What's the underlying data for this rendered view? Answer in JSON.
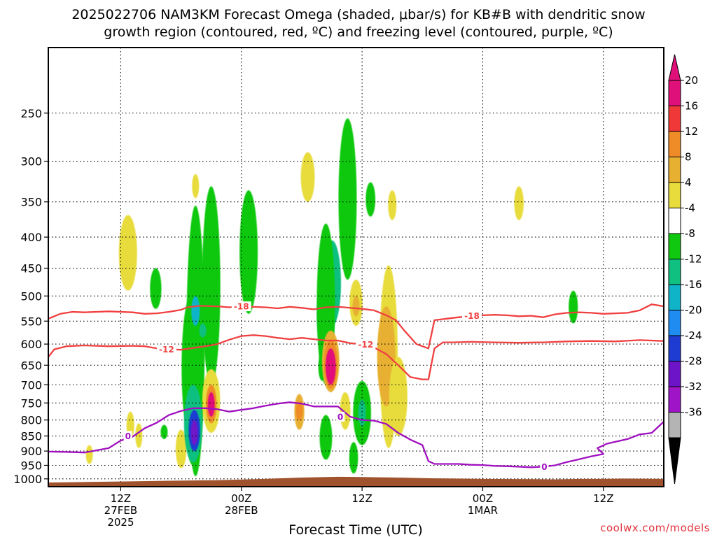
{
  "chart_data": {
    "type": "heatmap",
    "title_lines": [
      "2025022706 NAM3KM Forecast Omega (shaded, μbar/s) for KB#B with dendritic snow",
      "growth region (contoured, red, ºC) and freezing level (contoured, purple, ºC)"
    ],
    "xlabel": "Forecast Time (UTC)",
    "xlim_hours": [
      -6,
      45
    ],
    "x_ticks": [
      {
        "hour": 0,
        "lines": [
          "12Z",
          "27FEB",
          "2025"
        ]
      },
      {
        "hour": 10,
        "lines": [
          "00Z",
          "28FEB"
        ]
      },
      {
        "hour": 20,
        "lines": [
          "12Z"
        ]
      },
      {
        "hour": 30,
        "lines": [
          "00Z",
          "1MAR"
        ]
      },
      {
        "hour": 40,
        "lines": [
          "12Z"
        ]
      }
    ],
    "y_axis": {
      "scale": "log",
      "inverted": true,
      "ylim_hpa": [
        1030,
        195
      ],
      "grid": "dotted"
    },
    "y_ticks": [
      250,
      300,
      350,
      400,
      450,
      500,
      550,
      600,
      650,
      700,
      750,
      800,
      850,
      900,
      950,
      1000
    ],
    "colorbar": {
      "unit": "μbar/s",
      "labels": [
        20,
        16,
        12,
        8,
        4,
        -4,
        -8,
        -12,
        -16,
        -20,
        -24,
        -28,
        -32,
        -36
      ],
      "bins": [
        {
          "min": 20,
          "max": 24,
          "color": "#e0107a"
        },
        {
          "min": 16,
          "max": 20,
          "color": "#f03838"
        },
        {
          "min": 12,
          "max": 16,
          "color": "#f08c28"
        },
        {
          "min": 8,
          "max": 12,
          "color": "#e8b030"
        },
        {
          "min": 4,
          "max": 8,
          "color": "#e8dc3c"
        },
        {
          "min": -4,
          "max": 4,
          "color": "#ffffff"
        },
        {
          "min": -8,
          "max": -4,
          "color": "#10c810"
        },
        {
          "min": -12,
          "max": -8,
          "color": "#10c080"
        },
        {
          "min": -16,
          "max": -12,
          "color": "#10b4c8"
        },
        {
          "min": -20,
          "max": -16,
          "color": "#1e8cf0"
        },
        {
          "min": -24,
          "max": -20,
          "color": "#1e3cd2"
        },
        {
          "min": -28,
          "max": -24,
          "color": "#6e14c8"
        },
        {
          "min": -32,
          "max": -28,
          "color": "#a014c8"
        },
        {
          "min": -36,
          "max": -32,
          "color": "#b4b4b4"
        }
      ],
      "top_color": "#e0107a",
      "bottom_color": "#000000"
    },
    "omega_cells": [
      {
        "x": 0.6,
        "p1": 368,
        "p2": 490,
        "v": 6
      },
      {
        "x": 0.8,
        "p1": 775,
        "p2": 860,
        "v": 5
      },
      {
        "x": 1.5,
        "p1": 810,
        "p2": 890,
        "v": 5
      },
      {
        "x": -2.6,
        "p1": 880,
        "p2": 945,
        "v": 5
      },
      {
        "x": 2.9,
        "p1": 450,
        "p2": 525,
        "v": -6
      },
      {
        "x": 3.6,
        "p1": 815,
        "p2": 860,
        "v": -6
      },
      {
        "x": 5.0,
        "p1": 830,
        "p2": 960,
        "v": 5
      },
      {
        "x": 6.2,
        "p1": 315,
        "p2": 345,
        "v": 5
      },
      {
        "x": 5.8,
        "p1": 500,
        "p2": 860,
        "v": -6
      },
      {
        "x": 6.0,
        "p1": 820,
        "p2": 950,
        "v": -7
      },
      {
        "x": 6.2,
        "p1": 355,
        "p2": 990,
        "v": -6
      },
      {
        "x": 7.5,
        "p1": 330,
        "p2": 700,
        "v": -5
      },
      {
        "x": 6.0,
        "p1": 700,
        "p2": 940,
        "v": -10
      },
      {
        "x": 6.2,
        "p1": 500,
        "p2": 560,
        "v": -14
      },
      {
        "x": 6.8,
        "p1": 555,
        "p2": 585,
        "v": -12
      },
      {
        "x": 6.1,
        "p1": 770,
        "p2": 900,
        "v": -22
      },
      {
        "x": 6.1,
        "p1": 800,
        "p2": 880,
        "v": -28
      },
      {
        "x": 7.5,
        "p1": 660,
        "p2": 840,
        "v": 5
      },
      {
        "x": 7.5,
        "p1": 700,
        "p2": 810,
        "v": 12
      },
      {
        "x": 7.5,
        "p1": 720,
        "p2": 790,
        "v": 20
      },
      {
        "x": 10.6,
        "p1": 335,
        "p2": 535,
        "v": -6
      },
      {
        "x": 14.8,
        "p1": 725,
        "p2": 830,
        "v": 8
      },
      {
        "x": 14.8,
        "p1": 745,
        "p2": 800,
        "v": 12
      },
      {
        "x": 15.5,
        "p1": 290,
        "p2": 350,
        "v": 5
      },
      {
        "x": 16.7,
        "p1": 620,
        "p2": 690,
        "v": -8
      },
      {
        "x": 17.5,
        "p1": 405,
        "p2": 560,
        "v": -10
      },
      {
        "x": 17.0,
        "p1": 455,
        "p2": 630,
        "v": -12
      },
      {
        "x": 17.0,
        "p1": 380,
        "p2": 700,
        "v": -7
      },
      {
        "x": 18.8,
        "p1": 255,
        "p2": 470,
        "v": -6
      },
      {
        "x": 17.4,
        "p1": 625,
        "p2": 660,
        "v": -16
      },
      {
        "x": 17.0,
        "p1": 785,
        "p2": 930,
        "v": -6
      },
      {
        "x": 17.4,
        "p1": 570,
        "p2": 720,
        "v": 8
      },
      {
        "x": 17.4,
        "p1": 590,
        "p2": 710,
        "v": 14
      },
      {
        "x": 17.4,
        "p1": 610,
        "p2": 700,
        "v": 20
      },
      {
        "x": 18.6,
        "p1": 720,
        "p2": 830,
        "v": 6
      },
      {
        "x": 19.3,
        "p1": 870,
        "p2": 980,
        "v": -8
      },
      {
        "x": 20.0,
        "p1": 690,
        "p2": 880,
        "v": -6
      },
      {
        "x": 20.0,
        "p1": 740,
        "p2": 820,
        "v": -12
      },
      {
        "x": 20.7,
        "p1": 325,
        "p2": 370,
        "v": -6
      },
      {
        "x": 22.5,
        "p1": 335,
        "p2": 375,
        "v": 5
      },
      {
        "x": 19.5,
        "p1": 470,
        "p2": 560,
        "v": 6
      },
      {
        "x": 19.5,
        "p1": 500,
        "p2": 540,
        "v": 10
      },
      {
        "x": 22.2,
        "p1": 445,
        "p2": 890,
        "v": 6
      },
      {
        "x": 22.0,
        "p1": 520,
        "p2": 760,
        "v": 9
      },
      {
        "x": 23.0,
        "p1": 630,
        "p2": 850,
        "v": 5
      },
      {
        "x": 33.0,
        "p1": 330,
        "p2": 375,
        "v": 5
      },
      {
        "x": 37.5,
        "p1": 490,
        "p2": 555,
        "v": -6
      }
    ],
    "contours": [
      {
        "name": "-18",
        "color": "#f04040",
        "points": [
          [
            -6,
            545
          ],
          [
            -5,
            535
          ],
          [
            -4,
            531
          ],
          [
            -3,
            532
          ],
          [
            -2,
            531
          ],
          [
            -1,
            530
          ],
          [
            0,
            531
          ],
          [
            1,
            532
          ],
          [
            2,
            535
          ],
          [
            3,
            534
          ],
          [
            4,
            531
          ],
          [
            5,
            527
          ],
          [
            5.5,
            522
          ],
          [
            6.5,
            519
          ],
          [
            8,
            520
          ],
          [
            9,
            522
          ],
          [
            10,
            519
          ],
          [
            11,
            521
          ],
          [
            12,
            522
          ],
          [
            13,
            524
          ],
          [
            14,
            521
          ],
          [
            15,
            523
          ],
          [
            16,
            526
          ],
          [
            17,
            522
          ],
          [
            18,
            521
          ],
          [
            18.5,
            522
          ],
          [
            20,
            525
          ],
          [
            21,
            528
          ],
          [
            22,
            538
          ],
          [
            22.8,
            548
          ],
          [
            23.5,
            570
          ],
          [
            24.5,
            600
          ],
          [
            25.5,
            610
          ],
          [
            26.0,
            548
          ],
          [
            27,
            545
          ],
          [
            28,
            542
          ],
          [
            29,
            540
          ],
          [
            30,
            538
          ],
          [
            31,
            537
          ],
          [
            32,
            538
          ],
          [
            33,
            540
          ],
          [
            34,
            539
          ],
          [
            35,
            542
          ],
          [
            36,
            536
          ],
          [
            37,
            533
          ],
          [
            38,
            532
          ],
          [
            39,
            533
          ],
          [
            40,
            535
          ],
          [
            41,
            534
          ],
          [
            42,
            533
          ],
          [
            43,
            528
          ],
          [
            44,
            516
          ],
          [
            45,
            520
          ]
        ]
      },
      {
        "name": "-12",
        "color": "#f04040",
        "points": [
          [
            -6,
            630
          ],
          [
            -5.5,
            612
          ],
          [
            -4.5,
            605
          ],
          [
            -3,
            603
          ],
          [
            -1,
            605
          ],
          [
            1,
            604
          ],
          [
            2,
            605
          ],
          [
            3,
            610
          ],
          [
            4,
            612
          ],
          [
            5,
            613
          ],
          [
            6,
            609
          ],
          [
            7,
            605
          ],
          [
            8,
            600
          ],
          [
            9,
            590
          ],
          [
            10,
            582
          ],
          [
            11,
            580
          ],
          [
            12,
            582
          ],
          [
            13,
            586
          ],
          [
            14,
            589
          ],
          [
            15,
            586
          ],
          [
            16,
            589
          ],
          [
            17,
            592
          ],
          [
            18,
            592
          ],
          [
            19,
            598
          ],
          [
            20,
            600
          ],
          [
            21,
            608
          ],
          [
            22,
            623
          ],
          [
            23,
            650
          ],
          [
            24,
            680
          ],
          [
            25,
            686
          ],
          [
            25.5,
            686
          ],
          [
            26,
            610
          ],
          [
            26.7,
            596
          ],
          [
            27.5,
            596
          ],
          [
            29,
            595
          ],
          [
            31,
            596
          ],
          [
            33,
            597
          ],
          [
            35,
            596
          ],
          [
            37,
            594
          ],
          [
            39,
            593
          ],
          [
            41,
            594
          ],
          [
            43,
            591
          ],
          [
            45,
            593
          ]
        ]
      },
      {
        "name": "0",
        "color": "#a010c0",
        "points": [
          [
            -6,
            902
          ],
          [
            -4.5,
            903
          ],
          [
            -3,
            905
          ],
          [
            -1,
            890
          ],
          [
            0,
            865
          ],
          [
            1,
            852
          ],
          [
            2,
            825
          ],
          [
            3,
            808
          ],
          [
            4,
            785
          ],
          [
            5,
            773
          ],
          [
            6,
            765
          ],
          [
            7,
            765
          ],
          [
            8,
            768
          ],
          [
            9,
            775
          ],
          [
            10,
            770
          ],
          [
            11,
            765
          ],
          [
            12,
            758
          ],
          [
            13,
            752
          ],
          [
            14,
            748
          ],
          [
            15,
            752
          ],
          [
            16,
            760
          ],
          [
            17,
            760
          ],
          [
            18,
            760
          ],
          [
            18.5,
            775
          ],
          [
            19,
            790
          ],
          [
            19.5,
            795
          ],
          [
            20,
            800
          ],
          [
            21,
            802
          ],
          [
            22,
            812
          ],
          [
            23,
            840
          ],
          [
            24,
            862
          ],
          [
            25,
            880
          ],
          [
            25.5,
            935
          ],
          [
            26,
            945
          ],
          [
            27,
            945
          ],
          [
            28,
            945
          ],
          [
            29,
            948
          ],
          [
            30,
            949
          ],
          [
            31,
            952
          ],
          [
            32,
            953
          ],
          [
            33,
            955
          ],
          [
            34,
            957
          ],
          [
            35,
            955
          ],
          [
            36,
            950
          ],
          [
            37,
            938
          ],
          [
            38,
            928
          ],
          [
            39,
            918
          ],
          [
            40,
            910
          ],
          [
            39.5,
            890
          ],
          [
            40.3,
            875
          ],
          [
            42,
            860
          ],
          [
            43,
            845
          ],
          [
            44,
            840
          ],
          [
            45,
            805
          ]
        ]
      }
    ],
    "contour_labels": [
      {
        "text": "-18",
        "x": 10.0,
        "p": 520,
        "color": "#f04040"
      },
      {
        "text": "-12",
        "x": 3.8,
        "p": 612,
        "color": "#f04040"
      },
      {
        "text": "-12",
        "x": 20.3,
        "p": 601,
        "color": "#f04040"
      },
      {
        "text": "-18",
        "x": 29.1,
        "p": 539,
        "color": "#f04040"
      },
      {
        "text": "0",
        "x": 0.6,
        "p": 850,
        "color": "#a010c0"
      },
      {
        "text": "0",
        "x": 18.2,
        "p": 790,
        "color": "#a010c0"
      },
      {
        "text": "0",
        "x": 35.1,
        "p": 955,
        "color": "#a010c0"
      }
    ],
    "terrain": {
      "color": "#a0522d",
      "top_hpa": [
        [
          -6,
          1014
        ],
        [
          -3,
          1012
        ],
        [
          0,
          1010
        ],
        [
          4,
          1007
        ],
        [
          8,
          1005
        ],
        [
          12,
          1000
        ],
        [
          15,
          995
        ],
        [
          18,
          992
        ],
        [
          20,
          993
        ],
        [
          23,
          995
        ],
        [
          26,
          998
        ],
        [
          30,
          1000
        ],
        [
          34,
          1001
        ],
        [
          36,
          1002
        ],
        [
          38,
          1000
        ],
        [
          40,
          1000
        ],
        [
          42,
          999
        ],
        [
          45,
          1000
        ]
      ]
    },
    "credit": "coolwx.com/models"
  }
}
